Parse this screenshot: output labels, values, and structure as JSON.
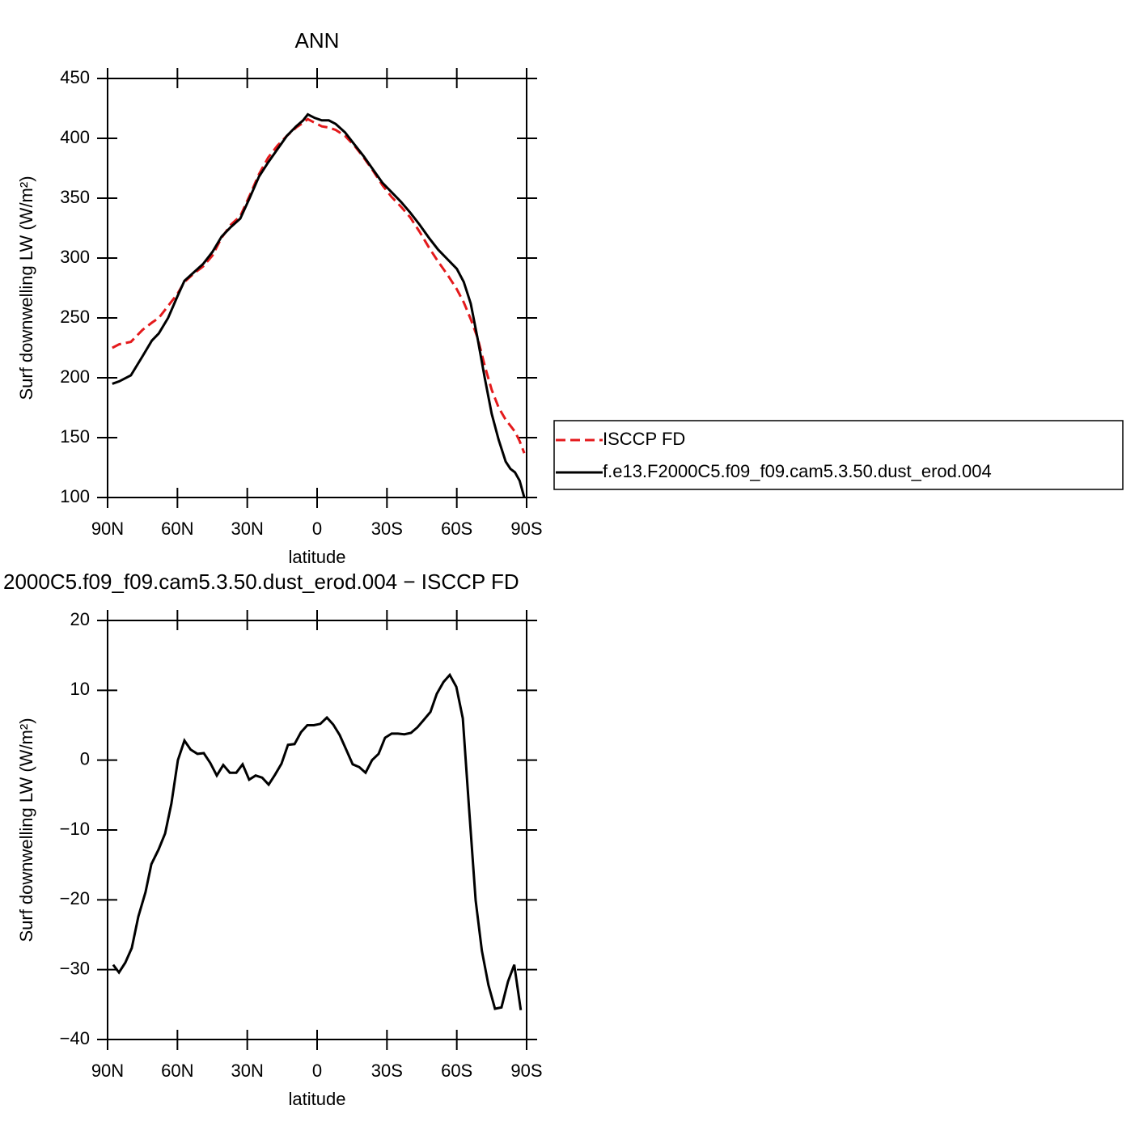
{
  "chart_data": [
    {
      "type": "line",
      "title": "ANN",
      "xlabel": "latitude",
      "ylabel": "Surf downwelling LW (W/m²)",
      "xlim": [
        90,
        -90
      ],
      "xticks": [
        {
          "value": 90,
          "label": "90N"
        },
        {
          "value": 60,
          "label": "60N"
        },
        {
          "value": 30,
          "label": "30N"
        },
        0,
        {
          "value": -30,
          "label": "30S"
        },
        {
          "value": -60,
          "label": "60S"
        },
        {
          "value": -90,
          "label": "90S"
        }
      ],
      "ylim": [
        100,
        450
      ],
      "yticks": [
        100,
        150,
        200,
        250,
        300,
        350,
        400,
        450
      ],
      "x": [
        88,
        85,
        80,
        75,
        71,
        68,
        64,
        60,
        57,
        53,
        49,
        45,
        41,
        37,
        33,
        29,
        25,
        21,
        17,
        13,
        9,
        6,
        4,
        1,
        -2,
        -5,
        -8,
        -12,
        -16,
        -20,
        -24,
        -28,
        -32,
        -36,
        -40,
        -44,
        -48,
        -52,
        -56,
        -60,
        -63,
        -66,
        -69,
        -72,
        -75,
        -78,
        -81,
        -83,
        -85,
        -87,
        -89
      ],
      "legend": "right",
      "series": [
        {
          "name": "ISCCP FD",
          "color": "#e41a1c",
          "line_style": "dashed",
          "values": [
            225,
            228,
            230,
            240,
            246,
            250,
            260,
            270,
            280,
            287,
            293,
            302,
            317,
            328,
            335,
            352,
            370,
            384,
            394,
            402,
            409,
            413,
            416,
            413,
            410,
            409,
            407,
            402,
            394,
            384,
            373,
            361,
            351,
            343,
            334,
            322,
            309,
            297,
            286,
            274,
            263,
            249,
            233,
            210,
            190,
            175,
            165,
            160,
            155,
            147,
            137
          ]
        },
        {
          "name": "f.e13.F2000C5.f09_f09.cam5.3.50.dust_erod.004",
          "color": "#000000",
          "line_style": "solid",
          "values": [
            195,
            197,
            202,
            218,
            231,
            237,
            250,
            268,
            281,
            288,
            295,
            305,
            318,
            326,
            333,
            350,
            368,
            380,
            391,
            402,
            410,
            415,
            420,
            417,
            415,
            415,
            412,
            405,
            395,
            385,
            374,
            363,
            355,
            347,
            338,
            328,
            317,
            307,
            299,
            291,
            280,
            262,
            232,
            200,
            170,
            148,
            130,
            124,
            121,
            114,
            100
          ]
        }
      ]
    },
    {
      "type": "line",
      "title": "2000C5.f09_f09.cam5.3.50.dust_erod.004 − ISCCP FD",
      "xlabel": "latitude",
      "ylabel": "Surf downwelling LW (W/m²)",
      "xlim": [
        90,
        -90
      ],
      "xticks": [
        {
          "value": 90,
          "label": "90N"
        },
        {
          "value": 60,
          "label": "60N"
        },
        {
          "value": 30,
          "label": "30N"
        },
        0,
        {
          "value": -30,
          "label": "30S"
        },
        {
          "value": -60,
          "label": "60S"
        },
        {
          "value": -90,
          "label": "90S"
        }
      ],
      "ylim": [
        -40,
        20
      ],
      "yticks": [
        {
          "value": -40,
          "label": "−40"
        },
        {
          "value": -30,
          "label": "−30"
        },
        {
          "value": -20,
          "label": "−20"
        },
        {
          "value": -10,
          "label": "−10"
        },
        0,
        10,
        20
      ],
      "x": [
        87.6,
        85.1,
        82.4,
        79.6,
        76.8,
        73.7,
        71.2,
        68.1,
        65.3,
        62.6,
        59.8,
        57,
        54.3,
        51.4,
        48.7,
        45.9,
        43.1,
        40.3,
        37.5,
        34.7,
        32,
        29.2,
        26.4,
        23.6,
        20.8,
        18.1,
        15.3,
        12.5,
        9.7,
        6.9,
        4.2,
        1.4,
        -1.4,
        -4.2,
        -6.9,
        -9.7,
        -12.5,
        -15.3,
        -18.1,
        -20.8,
        -23.6,
        -26.4,
        -29.2,
        -32,
        -34.7,
        -37.5,
        -40.3,
        -43.1,
        -45.9,
        -48.7,
        -51.4,
        -54.3,
        -57,
        -59.8,
        -62.6,
        -65.3,
        -68.1,
        -70.8,
        -73.6,
        -76.4,
        -79.2,
        -82,
        -84.7,
        -87.5
      ],
      "series": [
        {
          "color": "#000000",
          "line_style": "solid",
          "values": [
            -29.3,
            -30.4,
            -29,
            -26.9,
            -22.4,
            -18.9,
            -14.9,
            -12.8,
            -10.5,
            -6.2,
            0,
            2.8,
            1.5,
            0.9,
            1,
            -0.4,
            -2.2,
            -0.7,
            -1.8,
            -1.8,
            -0.6,
            -2.8,
            -2.2,
            -2.5,
            -3.5,
            -2.1,
            -0.5,
            2.2,
            2.3,
            4,
            5,
            5,
            5.2,
            6.1,
            5.1,
            3.6,
            1.5,
            -0.6,
            -1,
            -1.8,
            0,
            0.9,
            3.2,
            3.8,
            3.8,
            3.7,
            3.9,
            4.7,
            5.8,
            6.9,
            9.5,
            11.2,
            12.2,
            10.5,
            6,
            -7,
            -20.1,
            -27.3,
            -32.2,
            -35.6,
            -35.4,
            -31.7,
            -29.3,
            -35.8
          ]
        }
      ]
    }
  ]
}
